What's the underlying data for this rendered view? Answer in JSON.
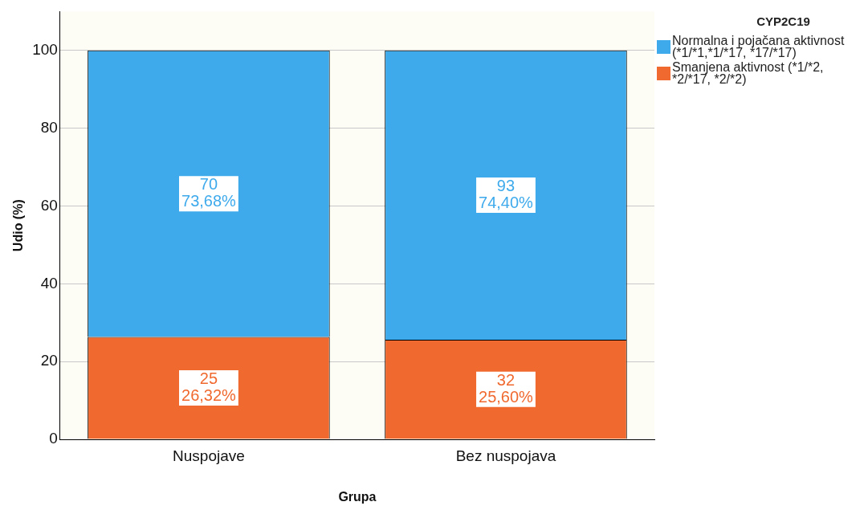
{
  "chart_data": {
    "type": "bar",
    "stacked": true,
    "xlabel": "Grupa",
    "ylabel": "Udio (%)",
    "legend_title": "CYP2C19",
    "categories": [
      "Nuspojave",
      "Bez nuspojava"
    ],
    "series": [
      {
        "name": "Smanjena aktivnost (*1/*2, *2/*17, *2/*2)",
        "color": "#f0692f",
        "values": [
          26.32,
          25.6
        ],
        "value_labels": [
          "25\n26,32%",
          "32\n25,60%"
        ]
      },
      {
        "name": "Normalna i pojačana aktivnost (*1/*1,*1/*17, *17/*17)",
        "color": "#3eaaec",
        "values": [
          73.68,
          74.4
        ],
        "value_labels": [
          "70\n73,68%",
          "93\n74,40%"
        ]
      }
    ],
    "ylim": [
      0,
      110
    ],
    "yticks": [
      0,
      20,
      40,
      60,
      80,
      100
    ],
    "grid": "y",
    "legend": "top right"
  }
}
